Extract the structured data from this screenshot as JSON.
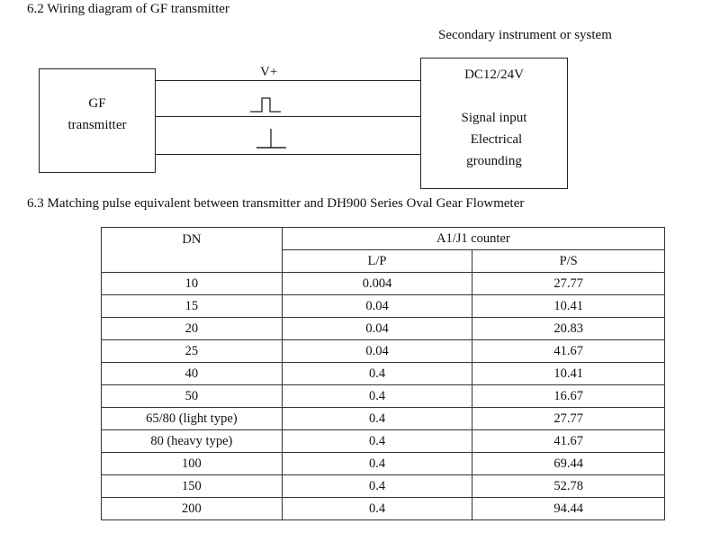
{
  "section_62": {
    "heading": "6.2 Wiring diagram of GF transmitter",
    "secondary_label": "Secondary instrument or system",
    "transmitter_lines": [
      "GF",
      "transmitter"
    ],
    "wire_label_vplus": "V+",
    "secondary_lines": [
      "DC12/24V",
      "Signal input",
      "Electrical",
      "grounding"
    ]
  },
  "section_63": {
    "heading": "6.3 Matching pulse equivalent between transmitter and DH900 Series Oval Gear Flowmeter",
    "table": {
      "col_dn": "DN",
      "group_header": "A1/J1 counter",
      "col_lp": "L/P",
      "col_ps": "P/S",
      "rows": [
        [
          "10",
          "0.004",
          "27.77"
        ],
        [
          "15",
          "0.04",
          "10.41"
        ],
        [
          "20",
          "0.04",
          "20.83"
        ],
        [
          "25",
          "0.04",
          "41.67"
        ],
        [
          "40",
          "0.4",
          "10.41"
        ],
        [
          "50",
          "0.4",
          "16.67"
        ],
        [
          "65/80 (light type)",
          "0.4",
          "27.77"
        ],
        [
          "80 (heavy type)",
          "0.4",
          "41.67"
        ],
        [
          "100",
          "0.4",
          "69.44"
        ],
        [
          "150",
          "0.4",
          "52.78"
        ],
        [
          "200",
          "0.4",
          "94.44"
        ]
      ]
    }
  }
}
